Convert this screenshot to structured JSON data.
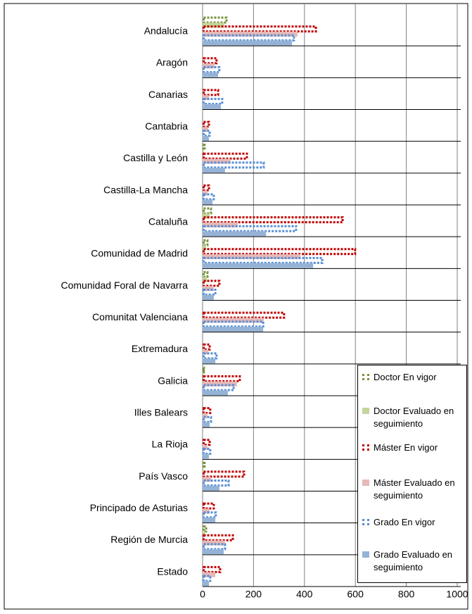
{
  "chart_data": {
    "type": "bar",
    "orientation": "horizontal",
    "categories": [
      "Andalucía",
      "Aragón",
      "Canarias",
      "Cantabria",
      "Castilla y León",
      "Castilla-La Mancha",
      "Cataluña",
      "Comunidad de Madrid",
      "Comunidad Foral de Navarra",
      "Comunitat Valenciana",
      "Extremadura",
      "Galicia",
      "Illes Balears",
      "La Rioja",
      "País Vasco",
      "Principado de Asturias",
      "Región de Murcia",
      "Estado"
    ],
    "series": [
      {
        "name": "Doctor En vigor",
        "color": "#77933c",
        "style": "dotted",
        "values": [
          94,
          0,
          0,
          0,
          8,
          0,
          33,
          19,
          19,
          0,
          0,
          5,
          0,
          0,
          8,
          0,
          14,
          0
        ]
      },
      {
        "name": "Doctor Evaluado en seguimiento",
        "color": "#c3d69b",
        "style": "solid",
        "values": [
          85,
          0,
          0,
          0,
          5,
          0,
          28,
          14,
          17,
          0,
          0,
          3,
          0,
          0,
          5,
          0,
          11,
          0
        ]
      },
      {
        "name": "Máster En vigor",
        "color": "#c00000",
        "style": "dotted",
        "values": [
          445,
          55,
          61,
          25,
          174,
          25,
          550,
          599,
          66,
          320,
          28,
          146,
          30,
          28,
          163,
          44,
          119,
          69
        ]
      },
      {
        "name": "Máster Evaluado en seguimiento",
        "color": "#e6b9b8",
        "style": "solid",
        "values": [
          373,
          47,
          25,
          22,
          110,
          19,
          138,
          384,
          44,
          240,
          22,
          135,
          19,
          19,
          33,
          28,
          88,
          50
        ]
      },
      {
        "name": "Grado En vigor",
        "color": "#558ed5",
        "style": "dotted",
        "values": [
          359,
          66,
          77,
          28,
          240,
          44,
          367,
          470,
          50,
          238,
          55,
          122,
          33,
          30,
          102,
          52,
          88,
          30
        ]
      },
      {
        "name": "Grado Evaluado en seguimiento",
        "color": "#95b3d7",
        "style": "solid",
        "values": [
          351,
          61,
          72,
          25,
          88,
          39,
          249,
          434,
          44,
          238,
          50,
          99,
          28,
          25,
          66,
          50,
          83,
          25
        ]
      }
    ],
    "xlim": [
      0,
      1000
    ],
    "xticks": [
      0,
      200,
      400,
      600,
      800,
      1000
    ],
    "grid": true,
    "legend": "right"
  }
}
